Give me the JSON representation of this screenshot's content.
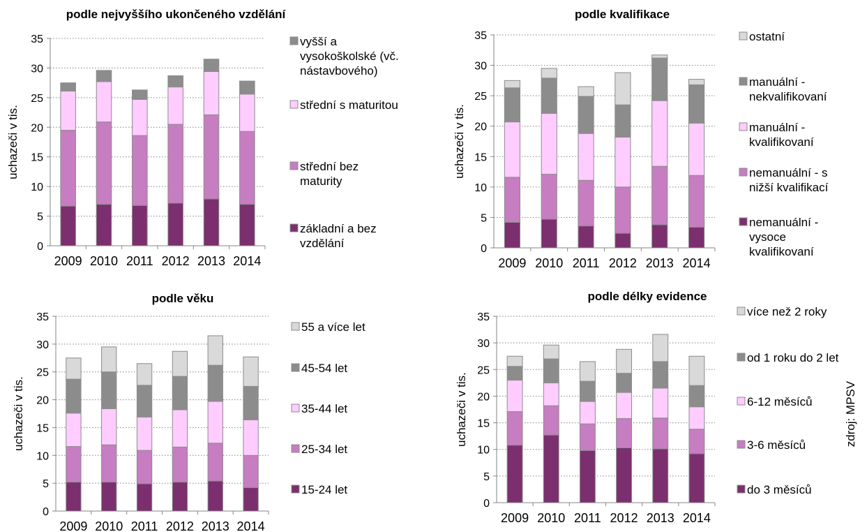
{
  "colors": {
    "level1": "#7b2f6e",
    "level2": "#c77dc1",
    "level3": "#ffccff",
    "level4": "#8c8c8c",
    "level5": "#d9d9d9",
    "gridline": "#808080",
    "bar_border": "#8c8c8c"
  },
  "source": "zdroj: MPSV",
  "chart_data": [
    {
      "type": "bar",
      "stacked": true,
      "title": "podle nejvyššího ukončeného vzdělání",
      "xlabel": "",
      "ylabel": "uchazeči v tis.",
      "ylim": [
        0,
        35
      ],
      "yticks": [
        "0",
        "5",
        "10",
        "15",
        "20",
        "25",
        "30",
        "35"
      ],
      "grid": true,
      "legend_position": "right",
      "categories": [
        "2009",
        "2010",
        "2011",
        "2012",
        "2013",
        "2014"
      ],
      "series": [
        {
          "name": "základní a bez vzdělání",
          "values": [
            6.7,
            7.0,
            6.8,
            7.2,
            7.9,
            7.0
          ]
        },
        {
          "name": "střední bez maturity",
          "values": [
            12.8,
            13.9,
            11.8,
            13.3,
            14.2,
            12.3
          ]
        },
        {
          "name": "střední s maturitou",
          "values": [
            6.6,
            6.8,
            6.1,
            6.3,
            7.3,
            6.3
          ]
        },
        {
          "name": "vyšší a vysokoškolské (vč. nástavbového)",
          "values": [
            1.4,
            1.9,
            1.6,
            1.9,
            2.1,
            2.2
          ]
        }
      ]
    },
    {
      "type": "bar",
      "stacked": true,
      "title": "podle kvalifikace",
      "xlabel": "",
      "ylabel": "uchazeči v tis.",
      "ylim": [
        0,
        35
      ],
      "yticks": [
        "0",
        "5",
        "10",
        "15",
        "20",
        "25",
        "30",
        "35"
      ],
      "grid": true,
      "legend_position": "right",
      "categories": [
        "2009",
        "2010",
        "2011",
        "2012",
        "2013",
        "2014"
      ],
      "series": [
        {
          "name": "nemanuální - vysoce kvalifikovaní",
          "values": [
            4.2,
            4.7,
            3.6,
            2.4,
            3.8,
            3.4
          ]
        },
        {
          "name": "nemanuální - s nižší kvalifikací",
          "values": [
            7.4,
            7.4,
            7.5,
            7.6,
            9.6,
            8.5
          ]
        },
        {
          "name": "manuální - kvalifikovaní",
          "values": [
            9.1,
            10.0,
            7.7,
            8.2,
            10.8,
            8.6
          ]
        },
        {
          "name": "manuální - nekvalifikovaní",
          "values": [
            5.6,
            5.8,
            6.1,
            5.3,
            7.0,
            6.3
          ]
        },
        {
          "name": "ostatní",
          "values": [
            1.2,
            1.6,
            1.6,
            5.3,
            0.5,
            0.9
          ]
        }
      ]
    },
    {
      "type": "bar",
      "stacked": true,
      "title": "podle věku",
      "xlabel": "",
      "ylabel": "uchazeči v tis.",
      "ylim": [
        0,
        35
      ],
      "yticks": [
        "0",
        "5",
        "10",
        "15",
        "20",
        "25",
        "30",
        "35"
      ],
      "grid": true,
      "legend_position": "right",
      "categories": [
        "2009",
        "2010",
        "2011",
        "2012",
        "2013",
        "2014"
      ],
      "series": [
        {
          "name": "15-24 let",
          "values": [
            5.2,
            5.2,
            4.9,
            5.2,
            5.4,
            4.2
          ]
        },
        {
          "name": "25-34 let",
          "values": [
            6.4,
            6.7,
            6.0,
            6.3,
            6.8,
            5.8
          ]
        },
        {
          "name": "35-44 let",
          "values": [
            6.0,
            6.5,
            6.0,
            6.7,
            7.5,
            6.4
          ]
        },
        {
          "name": "45-54 let",
          "values": [
            6.1,
            6.6,
            5.7,
            6.0,
            6.5,
            6.0
          ]
        },
        {
          "name": "55 a více let",
          "values": [
            3.8,
            4.5,
            3.9,
            4.5,
            5.3,
            5.3
          ]
        }
      ]
    },
    {
      "type": "bar",
      "stacked": true,
      "title": "podle délky evidence",
      "xlabel": "",
      "ylabel": "uchazeči v tis.",
      "ylim": [
        0,
        35
      ],
      "yticks": [
        "0",
        "5",
        "10",
        "15",
        "20",
        "25",
        "30",
        "35"
      ],
      "grid": true,
      "legend_position": "right",
      "categories": [
        "2009",
        "2010",
        "2011",
        "2012",
        "2013",
        "2014"
      ],
      "series": [
        {
          "name": "do 3 měsíců",
          "values": [
            10.8,
            12.7,
            9.8,
            10.3,
            10.1,
            9.2
          ]
        },
        {
          "name": "3-6 měsíců",
          "values": [
            6.3,
            5.5,
            5.0,
            5.5,
            5.8,
            4.6
          ]
        },
        {
          "name": "6-12 měsíců",
          "values": [
            5.9,
            4.3,
            4.2,
            4.9,
            5.6,
            4.2
          ]
        },
        {
          "name": "od 1 roku do 2 let",
          "values": [
            2.6,
            4.5,
            3.8,
            3.6,
            5.0,
            4.0
          ]
        },
        {
          "name": "více než 2 roky",
          "values": [
            1.9,
            2.6,
            3.7,
            4.5,
            5.1,
            5.5
          ]
        }
      ]
    }
  ]
}
